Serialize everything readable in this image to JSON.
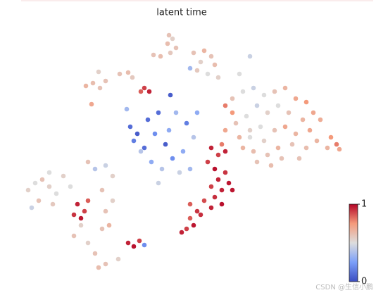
{
  "chart_data": {
    "type": "scatter",
    "title": "latent time",
    "colormap": "coolwarm",
    "xlim": [
      0,
      480
    ],
    "ylim": [
      0,
      360
    ],
    "x": [
      220,
      225,
      218,
      230,
      222,
      198,
      208,
      255,
      270,
      280,
      265,
      285,
      260,
      275,
      250,
      290,
      320,
      335,
      102,
      112,
      122,
      130,
      120,
      110,
      150,
      162,
      168,
      185,
      192,
      180,
      165,
      175,
      170,
      190,
      200,
      220,
      215,
      230,
      180,
      195,
      210,
      225,
      240,
      250,
      235,
      205,
      255,
      245,
      222,
      205,
      260,
      160,
      185,
      300,
      310,
      325,
      340,
      355,
      370,
      385,
      400,
      415,
      425,
      410,
      390,
      375,
      360,
      345,
      330,
      315,
      300,
      320,
      335,
      350,
      370,
      385,
      400,
      420,
      435,
      430,
      415,
      395,
      375,
      360,
      340,
      325,
      345,
      365,
      380,
      335,
      355,
      405,
      310,
      295,
      450,
      458,
      462,
      445,
      280,
      290,
      300,
      275,
      285,
      300,
      290,
      305,
      280,
      295,
      285,
      270,
      280,
      260,
      250,
      245,
      238,
      255,
      265,
      310,
      295,
      250,
      20,
      30,
      40,
      50,
      60,
      35,
      55,
      25,
      50,
      70,
      80,
      105,
      115,
      130,
      140,
      125,
      140,
      130,
      135,
      125,
      95,
      85,
      105,
      115,
      130,
      120,
      90,
      100,
      95,
      105,
      85,
      162,
      170,
      178,
      185,
      148
    ],
    "y": [
      345,
      340,
      333,
      327,
      320,
      317,
      315,
      320,
      323,
      315,
      307,
      303,
      295,
      290,
      298,
      285,
      290,
      315,
      273,
      277,
      270,
      280,
      293,
      247,
      290,
      292,
      285,
      270,
      265,
      265,
      215,
      205,
      195,
      225,
      205,
      210,
      190,
      235,
      180,
      165,
      155,
      170,
      180,
      155,
      150,
      135,
      200,
      220,
      260,
      235,
      235,
      240,
      185,
      245,
      255,
      265,
      270,
      260,
      265,
      270,
      255,
      250,
      235,
      225,
      235,
      245,
      235,
      245,
      230,
      220,
      210,
      200,
      210,
      215,
      210,
      215,
      205,
      210,
      225,
      195,
      185,
      190,
      185,
      175,
      180,
      185,
      165,
      160,
      170,
      200,
      195,
      170,
      235,
      190,
      200,
      190,
      183,
      185,
      185,
      175,
      180,
      165,
      155,
      150,
      140,
      135,
      130,
      125,
      115,
      110,
      100,
      95,
      85,
      70,
      65,
      75,
      90,
      125,
      105,
      105,
      125,
      135,
      140,
      130,
      120,
      110,
      105,
      100,
      150,
      145,
      130,
      165,
      155,
      160,
      145,
      125,
      110,
      95,
      75,
      70,
      75,
      60,
      50,
      35,
      20,
      15,
      105,
      95,
      85,
      110,
      90,
      50,
      45,
      53,
      47,
      27
    ],
    "values": [
      0.6,
      0.55,
      0.62,
      0.6,
      0.58,
      0.6,
      0.62,
      0.6,
      0.65,
      0.6,
      0.55,
      0.62,
      0.58,
      0.5,
      0.35,
      0.55,
      0.5,
      0.45,
      0.65,
      0.62,
      0.6,
      0.6,
      0.55,
      0.7,
      0.6,
      0.62,
      0.58,
      0.9,
      0.95,
      0.85,
      0.1,
      0.05,
      0.15,
      0.1,
      0.2,
      0.3,
      0.05,
      0.35,
      0.4,
      0.3,
      0.4,
      0.2,
      0.3,
      0.35,
      0.45,
      0.45,
      0.4,
      0.15,
      0.05,
      0.1,
      0.3,
      0.35,
      0.1,
      0.8,
      0.6,
      0.5,
      0.45,
      0.5,
      0.6,
      0.65,
      0.7,
      0.75,
      0.7,
      0.65,
      0.6,
      0.5,
      0.55,
      0.45,
      0.5,
      0.6,
      0.7,
      0.65,
      0.55,
      0.5,
      0.6,
      0.7,
      0.65,
      0.7,
      0.68,
      0.65,
      0.62,
      0.6,
      0.65,
      0.6,
      0.62,
      0.65,
      0.6,
      0.62,
      0.6,
      0.5,
      0.55,
      0.6,
      0.75,
      0.8,
      0.75,
      0.8,
      0.7,
      0.65,
      0.95,
      0.9,
      0.95,
      0.9,
      0.98,
      0.92,
      0.95,
      0.97,
      0.9,
      0.95,
      0.93,
      0.88,
      0.95,
      0.92,
      0.85,
      0.9,
      0.95,
      0.97,
      0.93,
      0.97,
      0.98,
      0.85,
      0.55,
      0.5,
      0.6,
      0.55,
      0.5,
      0.6,
      0.58,
      0.45,
      0.5,
      0.55,
      0.5,
      0.6,
      0.4,
      0.45,
      0.55,
      0.6,
      0.55,
      0.6,
      0.65,
      0.6,
      0.55,
      0.6,
      0.55,
      0.6,
      0.6,
      0.62,
      0.95,
      0.9,
      0.97,
      0.85,
      0.92,
      0.95,
      0.98,
      0.9,
      0.2,
      0.55
    ],
    "colorbar": {
      "clim": [
        0,
        1
      ],
      "ticks": [
        0,
        1
      ]
    },
    "watermark": "CSDN @生信小鹏"
  }
}
